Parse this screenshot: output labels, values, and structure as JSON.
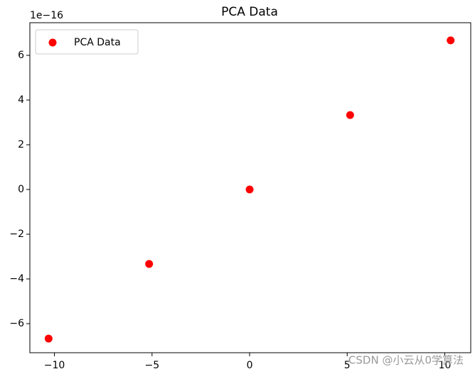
{
  "chart_data": {
    "type": "scatter",
    "title": "PCA Data",
    "y_offset_text": "1e−16",
    "series": [
      {
        "name": "PCA Data",
        "color": "#ff0000",
        "x": [
          -10.3,
          -5.15,
          0,
          5.15,
          10.3
        ],
        "values": [
          -6.67,
          -3.33,
          0,
          3.33,
          6.67
        ]
      }
    ],
    "xlim": [
      -11.26,
      11.33
    ],
    "ylim": [
      -7.3,
      7.46
    ],
    "xticks": [
      {
        "value": -10,
        "label": "−10"
      },
      {
        "value": -5,
        "label": "−5"
      },
      0,
      5,
      10
    ],
    "yticks": [
      {
        "value": -6,
        "label": "−6"
      },
      {
        "value": -4,
        "label": "−4"
      },
      {
        "value": -2,
        "label": "−2"
      },
      0,
      2,
      4,
      6
    ],
    "legend": "upper left",
    "watermark": "CSDN @小云从0学算法"
  }
}
